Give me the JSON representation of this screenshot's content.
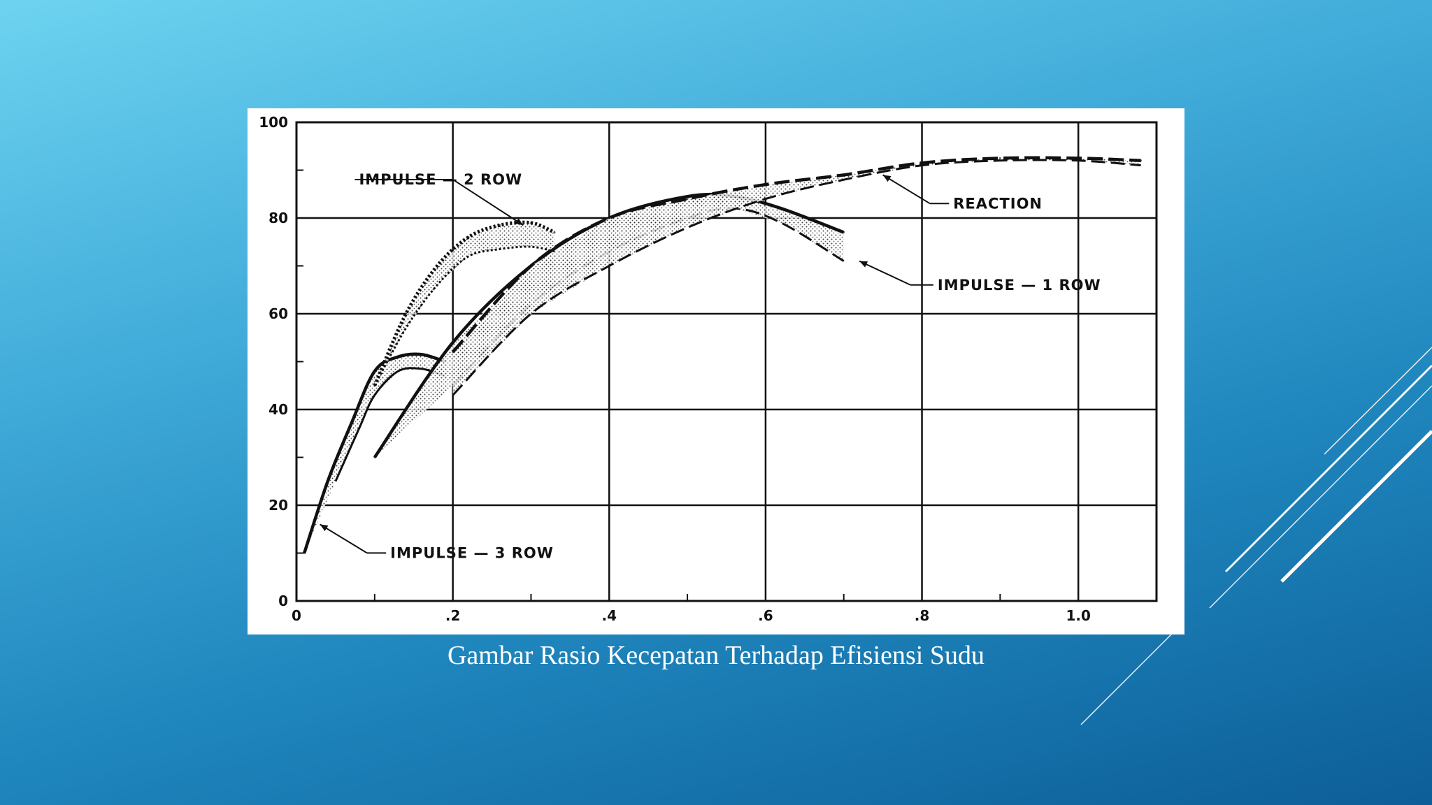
{
  "caption": "Gambar Rasio Kecepatan Terhadap Efisiensi Sudu",
  "colors": {
    "accent_line": "#ffffff",
    "plot_ink": "#111111"
  },
  "chart_data": {
    "type": "line",
    "title": "",
    "xlabel": "",
    "ylabel": "",
    "xlim": [
      0,
      1.1
    ],
    "ylim": [
      0,
      100
    ],
    "grid": true,
    "x_ticks": [
      {
        "value": 0,
        "label": "0"
      },
      {
        "value": 0.2,
        "label": ".2"
      },
      {
        "value": 0.4,
        "label": ".4"
      },
      {
        "value": 0.6,
        "label": ".6"
      },
      {
        "value": 0.8,
        "label": ".8"
      },
      {
        "value": 1.0,
        "label": "1.0"
      }
    ],
    "y_ticks": [
      {
        "value": 0,
        "label": "0"
      },
      {
        "value": 20,
        "label": "20"
      },
      {
        "value": 40,
        "label": "40"
      },
      {
        "value": 60,
        "label": "60"
      },
      {
        "value": 80,
        "label": "80"
      },
      {
        "value": 100,
        "label": "100"
      }
    ],
    "series": [
      {
        "name": "IMPULSE — 3 ROW",
        "style": "band",
        "upper": [
          [
            0.01,
            10
          ],
          [
            0.04,
            25
          ],
          [
            0.07,
            37
          ],
          [
            0.1,
            48
          ],
          [
            0.13,
            51
          ],
          [
            0.16,
            51.5
          ],
          [
            0.19,
            50
          ]
        ],
        "lower": [
          [
            0.05,
            25
          ],
          [
            0.08,
            36
          ],
          [
            0.1,
            43
          ],
          [
            0.13,
            48
          ],
          [
            0.16,
            48.5
          ],
          [
            0.19,
            47
          ]
        ]
      },
      {
        "name": "IMPULSE — 2 ROW",
        "style": "band",
        "upper": [
          [
            0.1,
            45
          ],
          [
            0.14,
            60
          ],
          [
            0.18,
            70
          ],
          [
            0.22,
            76
          ],
          [
            0.26,
            78.5
          ],
          [
            0.3,
            79
          ],
          [
            0.33,
            77
          ]
        ],
        "lower": [
          [
            0.1,
            45
          ],
          [
            0.14,
            57
          ],
          [
            0.18,
            66
          ],
          [
            0.22,
            72
          ],
          [
            0.26,
            73.5
          ],
          [
            0.3,
            74
          ],
          [
            0.33,
            73
          ]
        ]
      },
      {
        "name": "IMPULSE — 1 ROW",
        "style": "band",
        "upper": [
          [
            0.1,
            30
          ],
          [
            0.2,
            54
          ],
          [
            0.3,
            70
          ],
          [
            0.4,
            80
          ],
          [
            0.5,
            84.5
          ],
          [
            0.56,
            84.5
          ],
          [
            0.62,
            82
          ],
          [
            0.7,
            77
          ]
        ],
        "lower": [
          [
            0.2,
            45
          ],
          [
            0.3,
            62
          ],
          [
            0.4,
            73
          ],
          [
            0.5,
            80
          ],
          [
            0.56,
            82
          ],
          [
            0.62,
            79
          ],
          [
            0.7,
            71
          ]
        ]
      },
      {
        "name": "REACTION",
        "style": "band",
        "upper": [
          [
            0.2,
            52
          ],
          [
            0.3,
            70
          ],
          [
            0.4,
            80
          ],
          [
            0.5,
            84
          ],
          [
            0.6,
            87
          ],
          [
            0.7,
            89
          ],
          [
            0.8,
            91.5
          ],
          [
            0.9,
            92.5
          ],
          [
            1.0,
            92.5
          ],
          [
            1.08,
            92
          ]
        ],
        "lower": [
          [
            0.2,
            43
          ],
          [
            0.3,
            60
          ],
          [
            0.4,
            70
          ],
          [
            0.5,
            78
          ],
          [
            0.6,
            84
          ],
          [
            0.7,
            88
          ],
          [
            0.8,
            91
          ],
          [
            0.9,
            92
          ],
          [
            1.0,
            92
          ],
          [
            1.08,
            91
          ]
        ]
      }
    ],
    "annotations": [
      {
        "text": "IMPULSE — 2 ROW",
        "label_x": 0.08,
        "label_y": 87,
        "point_x": 0.29,
        "point_y": 78.5
      },
      {
        "text": "REACTION",
        "label_x": 0.84,
        "label_y": 82,
        "point_x": 0.75,
        "point_y": 89
      },
      {
        "text": "IMPULSE — 1 ROW",
        "label_x": 0.82,
        "label_y": 65,
        "point_x": 0.72,
        "point_y": 71
      },
      {
        "text": "IMPULSE — 3 ROW",
        "label_x": 0.12,
        "label_y": 9,
        "point_x": 0.03,
        "point_y": 16
      }
    ]
  }
}
